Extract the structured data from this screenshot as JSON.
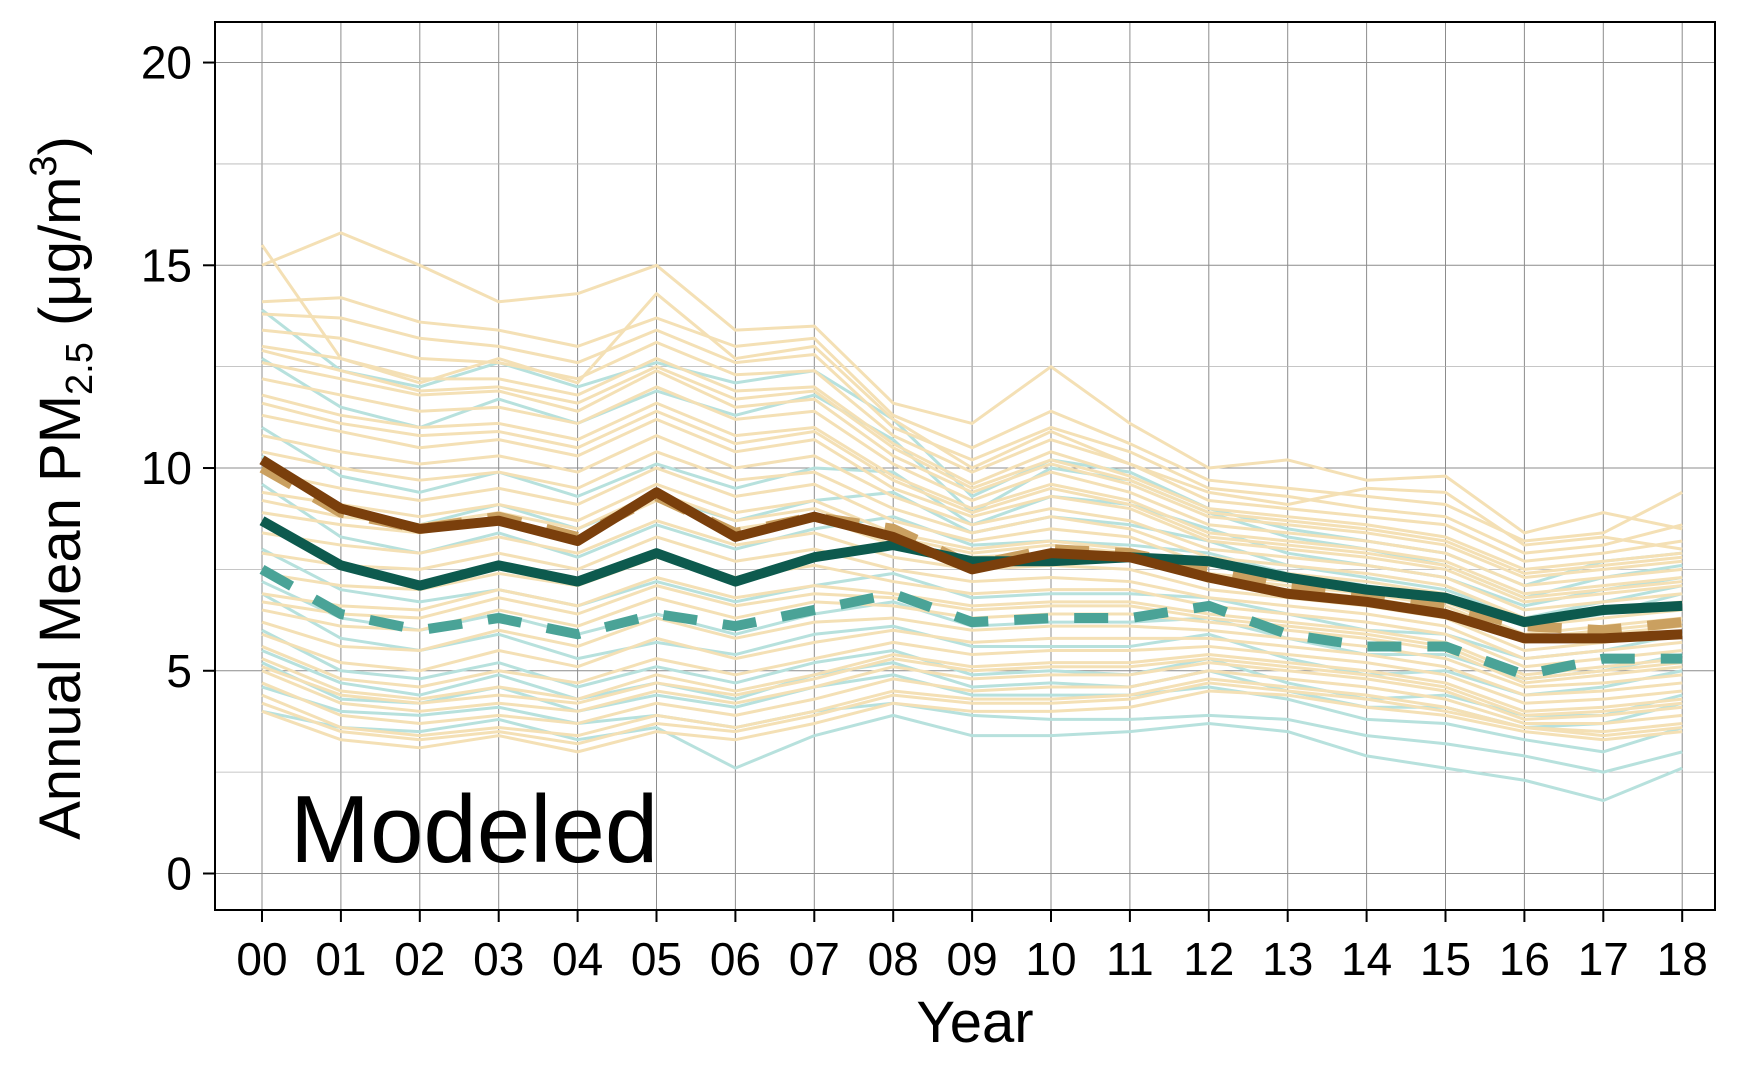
{
  "chart_data": {
    "type": "line",
    "title": "",
    "annotation": "Modeled",
    "xlabel": "Year",
    "ylabel_parts": {
      "main": "Annual Mean PM",
      "subscript": "2.5",
      "unit_open": " (μg/m",
      "superscript": "3",
      "unit_close": ")"
    },
    "x": [
      "00",
      "01",
      "02",
      "03",
      "04",
      "05",
      "06",
      "07",
      "08",
      "09",
      "10",
      "11",
      "12",
      "13",
      "14",
      "15",
      "16",
      "17",
      "18"
    ],
    "ylim": [
      -0.9,
      21
    ],
    "yticks": [
      0,
      5,
      10,
      15,
      20
    ],
    "grid": true,
    "colors": {
      "background_tan": "#f4e0b5",
      "background_teal": "#b7e1dd",
      "dark_brown": "#7a3f0c",
      "light_brown_dashed": "#caa060",
      "dark_teal": "#0d5a4e",
      "teal_dashed": "#4aa397"
    },
    "highlight_series": [
      {
        "style": "dark_brown",
        "width": 10,
        "dash": false,
        "values": [
          10.2,
          9.0,
          8.5,
          8.7,
          8.2,
          9.4,
          8.3,
          8.8,
          8.3,
          7.5,
          7.9,
          7.8,
          7.3,
          6.9,
          6.7,
          6.4,
          5.8,
          5.8,
          5.9
        ]
      },
      {
        "style": "light_brown_dashed",
        "width": 10,
        "dash": true,
        "values": [
          10.0,
          8.9,
          8.5,
          8.8,
          8.3,
          9.3,
          8.4,
          8.8,
          8.5,
          7.6,
          8.0,
          7.9,
          7.5,
          7.1,
          6.9,
          6.6,
          6.1,
          6.0,
          6.2
        ]
      },
      {
        "style": "dark_teal",
        "width": 10,
        "dash": false,
        "values": [
          8.7,
          7.6,
          7.1,
          7.6,
          7.2,
          7.9,
          7.2,
          7.8,
          8.1,
          7.7,
          7.7,
          7.8,
          7.7,
          7.3,
          7.0,
          6.8,
          6.2,
          6.5,
          6.6
        ]
      },
      {
        "style": "teal_dashed",
        "width": 10,
        "dash": true,
        "values": [
          7.5,
          6.4,
          6.0,
          6.3,
          5.9,
          6.4,
          6.1,
          6.5,
          6.9,
          6.2,
          6.3,
          6.3,
          6.6,
          5.9,
          5.6,
          5.6,
          4.9,
          5.3,
          5.3
        ]
      }
    ],
    "background_series": [
      {
        "group": "teal",
        "values": [
          4.0,
          3.6,
          3.5,
          3.8,
          3.3,
          3.6,
          2.6,
          3.4,
          3.9,
          3.4,
          3.4,
          3.5,
          3.7,
          3.5,
          2.9,
          2.6,
          2.3,
          1.8,
          2.6
        ]
      },
      {
        "group": "teal",
        "values": [
          4.6,
          4.0,
          3.9,
          4.1,
          3.7,
          3.9,
          3.6,
          4.0,
          4.2,
          3.9,
          3.8,
          3.8,
          3.9,
          3.8,
          3.4,
          3.2,
          2.9,
          2.5,
          3.0
        ]
      },
      {
        "group": "teal",
        "values": [
          5.2,
          4.3,
          4.2,
          4.6,
          4.0,
          4.4,
          4.1,
          4.6,
          4.9,
          4.4,
          4.4,
          4.4,
          4.6,
          4.3,
          3.8,
          3.7,
          3.3,
          3.0,
          3.6
        ]
      },
      {
        "group": "teal",
        "values": [
          6.0,
          5.0,
          4.8,
          5.2,
          4.6,
          5.1,
          4.7,
          5.2,
          5.5,
          4.9,
          5.0,
          4.9,
          5.3,
          4.7,
          4.3,
          4.4,
          3.9,
          3.9,
          4.4
        ]
      },
      {
        "group": "teal",
        "values": [
          6.9,
          5.8,
          5.5,
          5.9,
          5.3,
          5.7,
          5.4,
          5.9,
          6.1,
          5.6,
          5.6,
          5.6,
          5.9,
          5.3,
          4.9,
          5.0,
          4.4,
          4.6,
          5.0
        ]
      },
      {
        "group": "teal",
        "values": [
          8.0,
          7.0,
          6.7,
          7.0,
          6.6,
          7.2,
          6.7,
          7.1,
          7.4,
          6.8,
          6.9,
          6.9,
          6.8,
          6.4,
          6.0,
          5.9,
          5.3,
          5.5,
          5.9
        ]
      },
      {
        "group": "teal",
        "values": [
          9.6,
          8.3,
          7.9,
          8.4,
          7.8,
          8.6,
          8.0,
          8.5,
          8.8,
          8.1,
          8.2,
          8.1,
          7.9,
          7.4,
          7.1,
          6.8,
          6.1,
          6.4,
          6.9
        ]
      },
      {
        "group": "teal",
        "values": [
          11.0,
          9.8,
          9.4,
          9.9,
          9.3,
          10.1,
          9.5,
          10.0,
          9.9,
          8.6,
          9.3,
          9.1,
          8.5,
          7.9,
          7.6,
          7.3,
          6.6,
          7.0,
          7.3
        ]
      },
      {
        "group": "teal",
        "values": [
          12.7,
          11.5,
          11.0,
          11.7,
          11.1,
          11.9,
          11.3,
          11.8,
          10.7,
          8.9,
          10.0,
          9.7,
          8.9,
          8.3,
          8.0,
          7.6,
          6.8,
          7.3,
          7.6
        ]
      },
      {
        "group": "teal",
        "values": [
          13.9,
          12.4,
          12.0,
          12.6,
          12.0,
          12.6,
          12.1,
          12.4,
          11.2,
          9.3,
          10.2,
          9.9,
          9.0,
          8.5,
          8.2,
          7.9,
          7.1,
          7.7,
          7.9
        ]
      },
      {
        "group": "teal",
        "values": [
          5.5,
          4.7,
          4.4,
          4.9,
          4.3,
          4.7,
          4.3,
          4.9,
          5.2,
          4.6,
          4.7,
          4.6,
          5.0,
          4.5,
          4.1,
          4.1,
          3.6,
          3.7,
          4.2
        ]
      },
      {
        "group": "teal",
        "values": [
          7.2,
          6.3,
          6.0,
          6.4,
          5.9,
          6.4,
          5.9,
          6.4,
          6.7,
          6.1,
          6.2,
          6.2,
          6.3,
          5.8,
          5.4,
          5.4,
          4.8,
          5.0,
          5.4
        ]
      },
      {
        "group": "teal",
        "values": [
          10.3,
          9.0,
          8.6,
          9.1,
          8.5,
          9.3,
          8.7,
          9.2,
          9.4,
          8.4,
          8.8,
          8.6,
          8.2,
          7.6,
          7.3,
          7.0,
          6.3,
          6.7,
          7.1
        ]
      },
      {
        "group": "tan",
        "values": [
          15.5,
          12.7,
          12.1,
          12.7,
          12.1,
          14.3,
          12.7,
          13.0,
          11.2,
          10.0,
          10.9,
          10.1,
          9.4,
          9.1,
          9.5,
          9.4,
          8.1,
          8.3,
          8.0
        ]
      },
      {
        "group": "tan",
        "values": [
          15.0,
          15.8,
          15.0,
          14.1,
          14.3,
          15.0,
          13.4,
          13.5,
          11.6,
          11.1,
          12.5,
          11.1,
          10.0,
          10.2,
          9.7,
          9.8,
          8.4,
          8.9,
          8.5
        ]
      },
      {
        "group": "tan",
        "values": [
          14.1,
          14.2,
          13.6,
          13.4,
          13.0,
          13.7,
          13.0,
          13.2,
          11.3,
          10.5,
          11.4,
          10.6,
          9.7,
          9.5,
          9.3,
          9.1,
          8.2,
          8.4,
          9.4
        ]
      },
      {
        "group": "tan",
        "values": [
          13.8,
          13.7,
          13.2,
          13.0,
          12.6,
          13.4,
          12.6,
          12.8,
          11.0,
          10.2,
          11.0,
          10.4,
          9.5,
          9.3,
          9.0,
          8.8,
          7.9,
          8.1,
          8.6
        ]
      },
      {
        "group": "tan",
        "values": [
          13.4,
          13.2,
          12.7,
          12.6,
          12.2,
          13.1,
          12.3,
          12.4,
          10.8,
          9.9,
          10.7,
          10.1,
          9.2,
          9.0,
          8.8,
          8.6,
          7.7,
          7.9,
          8.2
        ]
      },
      {
        "group": "tan",
        "values": [
          13.0,
          12.7,
          12.2,
          12.2,
          11.8,
          12.7,
          11.9,
          12.0,
          10.6,
          9.6,
          10.4,
          9.8,
          9.0,
          8.8,
          8.6,
          8.3,
          7.5,
          7.7,
          7.9
        ]
      },
      {
        "group": "tan",
        "values": [
          12.6,
          12.2,
          11.8,
          11.9,
          11.4,
          12.4,
          11.5,
          11.7,
          10.3,
          9.4,
          10.1,
          9.6,
          8.8,
          8.6,
          8.4,
          8.1,
          7.3,
          7.5,
          7.7
        ]
      },
      {
        "group": "tan",
        "values": [
          12.2,
          11.8,
          11.4,
          11.5,
          11.1,
          12.0,
          11.2,
          11.4,
          10.1,
          9.2,
          9.9,
          9.4,
          8.6,
          8.4,
          8.2,
          7.9,
          7.1,
          7.3,
          7.5
        ]
      },
      {
        "group": "tan",
        "values": [
          11.8,
          11.3,
          11.0,
          11.1,
          10.7,
          11.6,
          10.8,
          11.0,
          9.8,
          9.0,
          9.6,
          9.2,
          8.4,
          8.2,
          8.0,
          7.7,
          6.9,
          7.1,
          7.3
        ]
      },
      {
        "group": "tan",
        "values": [
          11.3,
          10.9,
          10.5,
          10.7,
          10.3,
          11.2,
          10.4,
          10.7,
          9.5,
          8.8,
          9.3,
          9.0,
          8.2,
          8.0,
          7.8,
          7.5,
          6.7,
          6.9,
          7.1
        ]
      },
      {
        "group": "tan",
        "values": [
          10.8,
          10.4,
          10.1,
          10.3,
          9.9,
          10.8,
          10.0,
          10.3,
          9.3,
          8.6,
          9.0,
          8.7,
          8.0,
          7.8,
          7.6,
          7.3,
          6.5,
          6.7,
          6.9
        ]
      },
      {
        "group": "tan",
        "values": [
          10.4,
          10.0,
          9.7,
          9.9,
          9.5,
          10.4,
          9.7,
          9.9,
          9.0,
          8.4,
          8.8,
          8.5,
          7.8,
          7.6,
          7.4,
          7.1,
          6.3,
          6.5,
          6.7
        ]
      },
      {
        "group": "tan",
        "values": [
          9.9,
          9.5,
          9.2,
          9.5,
          9.1,
          10.0,
          9.3,
          9.6,
          8.7,
          8.2,
          8.5,
          8.3,
          7.6,
          7.4,
          7.2,
          6.9,
          6.1,
          6.3,
          6.5
        ]
      },
      {
        "group": "tan",
        "values": [
          9.4,
          9.1,
          8.8,
          9.1,
          8.7,
          9.6,
          8.9,
          9.2,
          8.4,
          8.0,
          8.2,
          8.0,
          7.4,
          7.2,
          7.0,
          6.7,
          5.9,
          6.1,
          6.3
        ]
      },
      {
        "group": "tan",
        "values": [
          8.9,
          8.6,
          8.4,
          8.7,
          8.3,
          9.2,
          8.5,
          8.8,
          8.1,
          7.8,
          7.9,
          7.8,
          7.2,
          7.0,
          6.8,
          6.5,
          5.7,
          5.9,
          6.1
        ]
      },
      {
        "group": "tan",
        "values": [
          8.4,
          8.1,
          7.9,
          8.3,
          7.9,
          8.7,
          8.1,
          8.4,
          7.8,
          7.5,
          7.6,
          7.5,
          7.0,
          6.8,
          6.6,
          6.3,
          5.5,
          5.7,
          5.9
        ]
      },
      {
        "group": "tan",
        "values": [
          7.9,
          7.6,
          7.5,
          7.9,
          7.5,
          8.3,
          7.7,
          8.0,
          7.5,
          7.2,
          7.3,
          7.2,
          6.8,
          6.6,
          6.4,
          6.1,
          5.3,
          5.5,
          5.7
        ]
      },
      {
        "group": "tan",
        "values": [
          7.4,
          7.1,
          7.0,
          7.4,
          7.1,
          7.8,
          7.3,
          7.6,
          7.2,
          6.9,
          7.0,
          7.0,
          6.6,
          6.4,
          6.2,
          5.9,
          5.1,
          5.3,
          5.5
        ]
      },
      {
        "group": "tan",
        "values": [
          6.9,
          6.6,
          6.5,
          7.0,
          6.6,
          7.3,
          6.8,
          7.1,
          6.9,
          6.6,
          6.7,
          6.7,
          6.4,
          6.2,
          6.0,
          5.7,
          4.9,
          5.1,
          5.3
        ]
      },
      {
        "group": "tan",
        "values": [
          6.5,
          6.1,
          6.0,
          6.5,
          6.1,
          6.8,
          6.3,
          6.7,
          6.6,
          6.3,
          6.4,
          6.4,
          6.2,
          6.0,
          5.8,
          5.5,
          4.7,
          4.9,
          5.1
        ]
      },
      {
        "group": "tan",
        "values": [
          6.2,
          5.6,
          5.5,
          6.0,
          5.6,
          6.3,
          5.8,
          6.2,
          6.3,
          6.0,
          6.1,
          6.1,
          6.0,
          5.8,
          5.6,
          5.3,
          4.6,
          4.7,
          4.9
        ]
      },
      {
        "group": "tan",
        "values": [
          5.9,
          5.2,
          5.0,
          5.5,
          5.1,
          5.8,
          5.3,
          5.7,
          6.0,
          5.7,
          5.8,
          5.8,
          5.8,
          5.6,
          5.4,
          5.1,
          4.4,
          4.5,
          4.7
        ]
      },
      {
        "group": "tan",
        "values": [
          5.6,
          4.8,
          4.6,
          5.0,
          4.7,
          5.3,
          4.9,
          5.3,
          5.7,
          5.4,
          5.5,
          5.5,
          5.6,
          5.4,
          5.2,
          4.9,
          4.2,
          4.3,
          4.5
        ]
      },
      {
        "group": "tan",
        "values": [
          5.3,
          4.5,
          4.3,
          4.6,
          4.3,
          4.9,
          4.5,
          4.9,
          5.4,
          5.1,
          5.2,
          5.2,
          5.4,
          5.2,
          5.0,
          4.7,
          4.0,
          4.1,
          4.3
        ]
      },
      {
        "group": "tan",
        "values": [
          5.0,
          4.2,
          4.0,
          4.2,
          4.0,
          4.5,
          4.2,
          4.6,
          5.1,
          4.8,
          4.9,
          4.9,
          5.2,
          5.0,
          4.8,
          4.5,
          3.8,
          3.9,
          4.1
        ]
      },
      {
        "group": "tan",
        "values": [
          4.7,
          3.9,
          3.7,
          3.9,
          3.7,
          4.2,
          3.9,
          4.3,
          4.8,
          4.5,
          4.6,
          4.6,
          5.0,
          4.8,
          4.6,
          4.3,
          3.7,
          3.7,
          3.9
        ]
      },
      {
        "group": "tan",
        "values": [
          4.4,
          3.6,
          3.4,
          3.6,
          3.4,
          3.9,
          3.6,
          4.0,
          4.5,
          4.3,
          4.3,
          4.4,
          4.8,
          4.6,
          4.4,
          4.1,
          3.6,
          3.5,
          3.7
        ]
      },
      {
        "group": "tan",
        "values": [
          4.0,
          3.3,
          3.1,
          3.4,
          3.0,
          3.5,
          3.3,
          3.7,
          4.2,
          4.0,
          4.0,
          4.1,
          4.5,
          4.4,
          4.1,
          3.9,
          3.5,
          3.3,
          3.5
        ]
      },
      {
        "group": "tan",
        "values": [
          12.9,
          12.4,
          11.9,
          12.0,
          11.6,
          12.5,
          11.7,
          11.9,
          10.5,
          9.5,
          10.2,
          9.7,
          8.9,
          8.7,
          8.5,
          8.2,
          7.4,
          7.6,
          7.8
        ]
      },
      {
        "group": "tan",
        "values": [
          11.6,
          11.1,
          10.8,
          10.9,
          10.5,
          11.4,
          10.6,
          10.9,
          9.7,
          8.9,
          9.5,
          9.1,
          8.3,
          8.1,
          7.9,
          7.6,
          6.8,
          7.0,
          7.2
        ]
      },
      {
        "group": "tan",
        "values": [
          9.2,
          8.8,
          8.6,
          8.9,
          8.5,
          9.4,
          8.7,
          9.0,
          8.3,
          7.9,
          8.1,
          7.9,
          7.3,
          7.1,
          6.9,
          6.6,
          5.8,
          6.0,
          6.2
        ]
      },
      {
        "group": "tan",
        "values": [
          6.7,
          6.4,
          6.3,
          6.8,
          6.4,
          7.1,
          6.6,
          6.9,
          6.8,
          6.5,
          6.6,
          6.6,
          6.3,
          6.1,
          5.9,
          5.6,
          4.8,
          5.0,
          5.2
        ]
      },
      {
        "group": "tan",
        "values": [
          5.1,
          4.4,
          4.2,
          4.4,
          4.2,
          4.7,
          4.4,
          4.8,
          5.3,
          5.0,
          5.1,
          5.1,
          5.3,
          5.1,
          4.9,
          4.6,
          3.9,
          4.0,
          4.2
        ]
      },
      {
        "group": "tan",
        "values": [
          4.2,
          3.5,
          3.3,
          3.5,
          3.2,
          3.7,
          3.5,
          3.9,
          4.4,
          4.2,
          4.2,
          4.3,
          4.7,
          4.5,
          4.3,
          4.0,
          3.6,
          3.4,
          3.6
        ]
      }
    ]
  }
}
